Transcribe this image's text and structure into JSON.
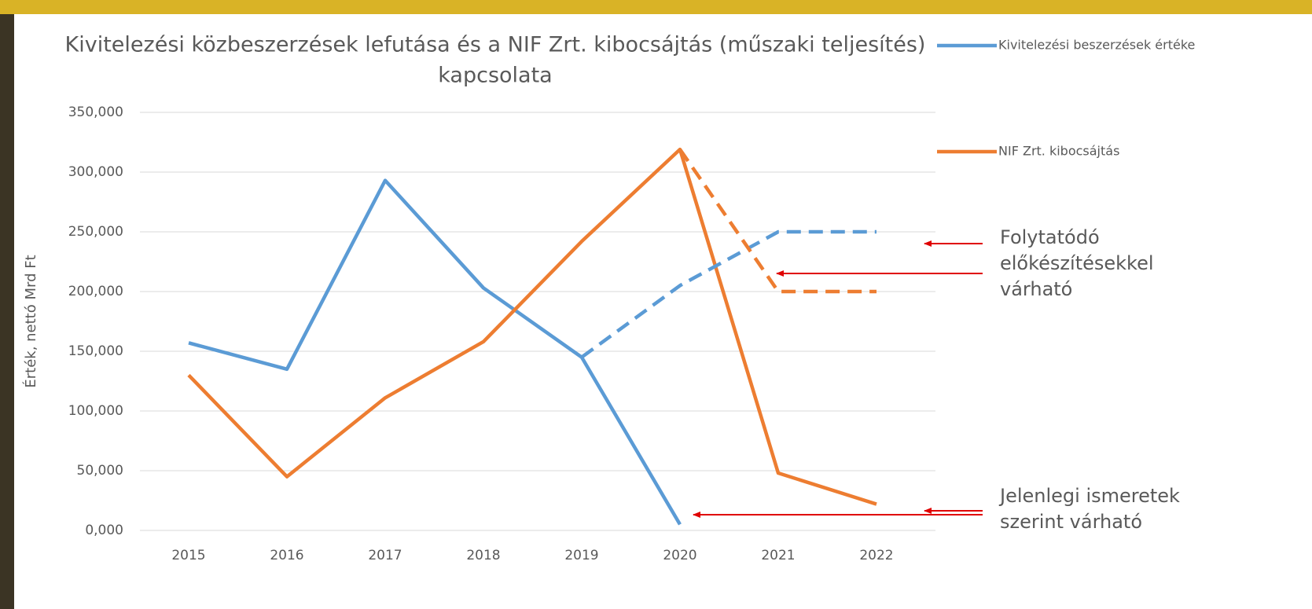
{
  "chart_data": {
    "type": "line",
    "title": [
      "Kivitelezési közbeszerzések lefutása és a NIF Zrt. kibocsájtás (műszaki teljesítés)",
      "kapcsolata"
    ],
    "y_axis_label": "Érték, nettó Mrd Ft",
    "categories": [
      "2015",
      "2016",
      "2017",
      "2018",
      "2019",
      "2020",
      "2021",
      "2022"
    ],
    "series": [
      {
        "name": "Kivitelezési beszerzések értéke",
        "color": "#5b9bd5",
        "dashed": false,
        "values": [
          157,
          135,
          293,
          203,
          145,
          5,
          null,
          null
        ]
      },
      {
        "name": "NIF Zrt. kibocsájtás",
        "color": "#ed7d31",
        "dashed": false,
        "values": [
          130,
          45,
          111,
          158,
          242,
          319,
          48,
          22
        ]
      },
      {
        "color": "#5b9bd5",
        "dashed": true,
        "values": [
          null,
          null,
          null,
          null,
          145,
          205,
          250,
          250
        ]
      },
      {
        "color": "#ed7d31",
        "dashed": true,
        "values": [
          null,
          null,
          null,
          null,
          null,
          319,
          200,
          200
        ]
      }
    ],
    "ylim": [
      0,
      350
    ],
    "yticks": [
      {
        "value": 0,
        "label": "0,000"
      },
      {
        "value": 50,
        "label": "50,000"
      },
      {
        "value": 100,
        "label": "100,000"
      },
      {
        "value": 150,
        "label": "150,000"
      },
      {
        "value": 200,
        "label": "200,000"
      },
      {
        "value": 250,
        "label": "250,000"
      },
      {
        "value": 300,
        "label": "300,000"
      },
      {
        "value": 350,
        "label": "350,000"
      }
    ],
    "grid": true,
    "legend_position": "top-right",
    "annotations": [
      {
        "lines": [
          "Folytatódó",
          "előkészítésekkel",
          "várható"
        ]
      },
      {
        "lines": [
          "Jelenlegi ismeretek",
          "szerint várható"
        ]
      }
    ]
  }
}
